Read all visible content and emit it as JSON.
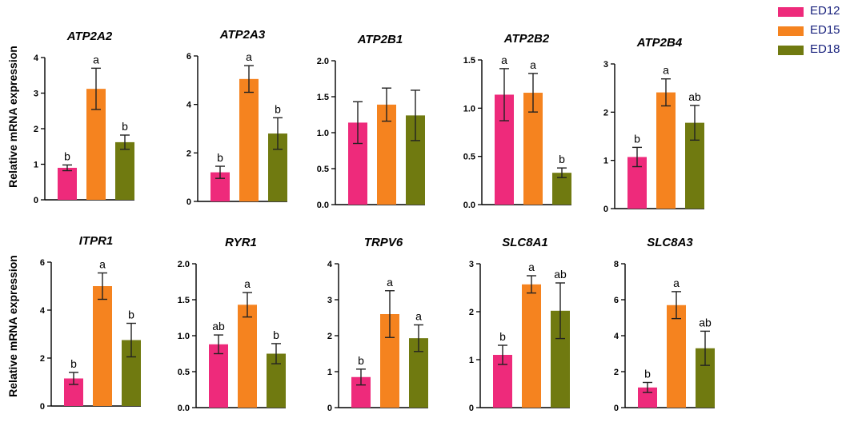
{
  "legend": [
    {
      "label": "ED12",
      "color": "#ee2a7b"
    },
    {
      "label": "ED15",
      "color": "#f5831f"
    },
    {
      "label": "ED18",
      "color": "#707a10"
    }
  ],
  "ylabels": {
    "row1": "Relative mRNA expression",
    "row2": "Relative mRNA expression"
  },
  "chart_data": [
    {
      "type": "bar",
      "title": "ATP2A2",
      "categories": [
        "ED12",
        "ED15",
        "ED18"
      ],
      "series_colors": [
        "#ee2a7b",
        "#f5831f",
        "#707a10"
      ],
      "values": [
        0.9,
        3.12,
        1.62
      ],
      "errors": [
        0.08,
        0.58,
        0.2
      ],
      "letters": [
        "b",
        "a",
        "b"
      ],
      "ylim": [
        0,
        4
      ],
      "ticks": [
        0,
        1,
        2,
        3,
        4
      ],
      "tick_labels": [
        "0",
        "1",
        "2",
        "3",
        "4"
      ],
      "ylabel": "Relative mRNA expression"
    },
    {
      "type": "bar",
      "title": "ATP2A3",
      "categories": [
        "ED12",
        "ED15",
        "ED18"
      ],
      "series_colors": [
        "#ee2a7b",
        "#f5831f",
        "#707a10"
      ],
      "values": [
        1.2,
        5.05,
        2.8
      ],
      "errors": [
        0.25,
        0.55,
        0.65
      ],
      "letters": [
        "b",
        "a",
        "b"
      ],
      "ylim": [
        0,
        6
      ],
      "ticks": [
        0,
        2,
        4,
        6
      ],
      "tick_labels": [
        "0",
        "2",
        "4",
        "6"
      ]
    },
    {
      "type": "bar",
      "title": "ATP2B1",
      "categories": [
        "ED12",
        "ED15",
        "ED18"
      ],
      "series_colors": [
        "#ee2a7b",
        "#f5831f",
        "#707a10"
      ],
      "values": [
        1.14,
        1.39,
        1.24
      ],
      "errors": [
        0.29,
        0.23,
        0.35
      ],
      "letters": [
        "",
        "",
        ""
      ],
      "ylim": [
        0,
        2
      ],
      "ticks": [
        0,
        0.5,
        1,
        1.5,
        2
      ],
      "tick_labels": [
        "0.0",
        "0.5",
        "1.0",
        "1.5",
        "2.0"
      ]
    },
    {
      "type": "bar",
      "title": "ATP2B2",
      "categories": [
        "ED12",
        "ED15",
        "ED18"
      ],
      "series_colors": [
        "#ee2a7b",
        "#f5831f",
        "#707a10"
      ],
      "values": [
        1.14,
        1.16,
        0.33
      ],
      "errors": [
        0.27,
        0.2,
        0.05
      ],
      "letters": [
        "a",
        "a",
        "b"
      ],
      "ylim": [
        0,
        1.5
      ],
      "ticks": [
        0,
        0.5,
        1,
        1.5
      ],
      "tick_labels": [
        "0.0",
        "0.5",
        "1.0",
        "1.5"
      ]
    },
    {
      "type": "bar",
      "title": "ATP2B4",
      "categories": [
        "ED12",
        "ED15",
        "ED18"
      ],
      "series_colors": [
        "#ee2a7b",
        "#f5831f",
        "#707a10"
      ],
      "values": [
        1.07,
        2.41,
        1.78
      ],
      "errors": [
        0.2,
        0.28,
        0.36
      ],
      "letters": [
        "b",
        "a",
        "ab"
      ],
      "ylim": [
        0,
        3
      ],
      "ticks": [
        0,
        1,
        2,
        3
      ],
      "tick_labels": [
        "0",
        "1",
        "2",
        "3"
      ]
    },
    {
      "type": "bar",
      "title": "ITPR1",
      "categories": [
        "ED12",
        "ED15",
        "ED18"
      ],
      "series_colors": [
        "#ee2a7b",
        "#f5831f",
        "#707a10"
      ],
      "values": [
        1.15,
        5.0,
        2.75
      ],
      "errors": [
        0.25,
        0.55,
        0.7
      ],
      "letters": [
        "b",
        "a",
        "b"
      ],
      "ylim": [
        0,
        6
      ],
      "ticks": [
        0,
        2,
        4,
        6
      ],
      "tick_labels": [
        "0",
        "2",
        "4",
        "6"
      ],
      "ylabel": "Relative mRNA expression"
    },
    {
      "type": "bar",
      "title": "RYR1",
      "categories": [
        "ED12",
        "ED15",
        "ED18"
      ],
      "series_colors": [
        "#ee2a7b",
        "#f5831f",
        "#707a10"
      ],
      "values": [
        0.88,
        1.43,
        0.75
      ],
      "errors": [
        0.13,
        0.17,
        0.14
      ],
      "letters": [
        "ab",
        "a",
        "b"
      ],
      "ylim": [
        0,
        2
      ],
      "ticks": [
        0,
        0.5,
        1,
        1.5,
        2
      ],
      "tick_labels": [
        "0.0",
        "0.5",
        "1.0",
        "1.5",
        "2.0"
      ]
    },
    {
      "type": "bar",
      "title": "TRPV6",
      "categories": [
        "ED12",
        "ED15",
        "ED18"
      ],
      "series_colors": [
        "#ee2a7b",
        "#f5831f",
        "#707a10"
      ],
      "values": [
        0.85,
        2.6,
        1.93
      ],
      "errors": [
        0.22,
        0.65,
        0.37
      ],
      "letters": [
        "b",
        "a",
        "a"
      ],
      "ylim": [
        0,
        4
      ],
      "ticks": [
        0,
        1,
        2,
        3,
        4
      ],
      "tick_labels": [
        "0",
        "1",
        "2",
        "3",
        "4"
      ]
    },
    {
      "type": "bar",
      "title": "SLC8A1",
      "categories": [
        "ED12",
        "ED15",
        "ED18"
      ],
      "series_colors": [
        "#ee2a7b",
        "#f5831f",
        "#707a10"
      ],
      "values": [
        1.1,
        2.57,
        2.02
      ],
      "errors": [
        0.2,
        0.18,
        0.58
      ],
      "letters": [
        "b",
        "a",
        "ab"
      ],
      "ylim": [
        0,
        3
      ],
      "ticks": [
        0,
        1,
        2,
        3
      ],
      "tick_labels": [
        "0",
        "1",
        "2",
        "3"
      ]
    },
    {
      "type": "bar",
      "title": "SLC8A3",
      "categories": [
        "ED12",
        "ED15",
        "ED18"
      ],
      "series_colors": [
        "#ee2a7b",
        "#f5831f",
        "#707a10"
      ],
      "values": [
        1.12,
        5.7,
        3.3
      ],
      "errors": [
        0.28,
        0.75,
        0.95
      ],
      "letters": [
        "b",
        "a",
        "ab"
      ],
      "ylim": [
        0,
        8
      ],
      "ticks": [
        0,
        2,
        4,
        6,
        8
      ],
      "tick_labels": [
        "0",
        "2",
        "4",
        "6",
        "8"
      ]
    }
  ]
}
